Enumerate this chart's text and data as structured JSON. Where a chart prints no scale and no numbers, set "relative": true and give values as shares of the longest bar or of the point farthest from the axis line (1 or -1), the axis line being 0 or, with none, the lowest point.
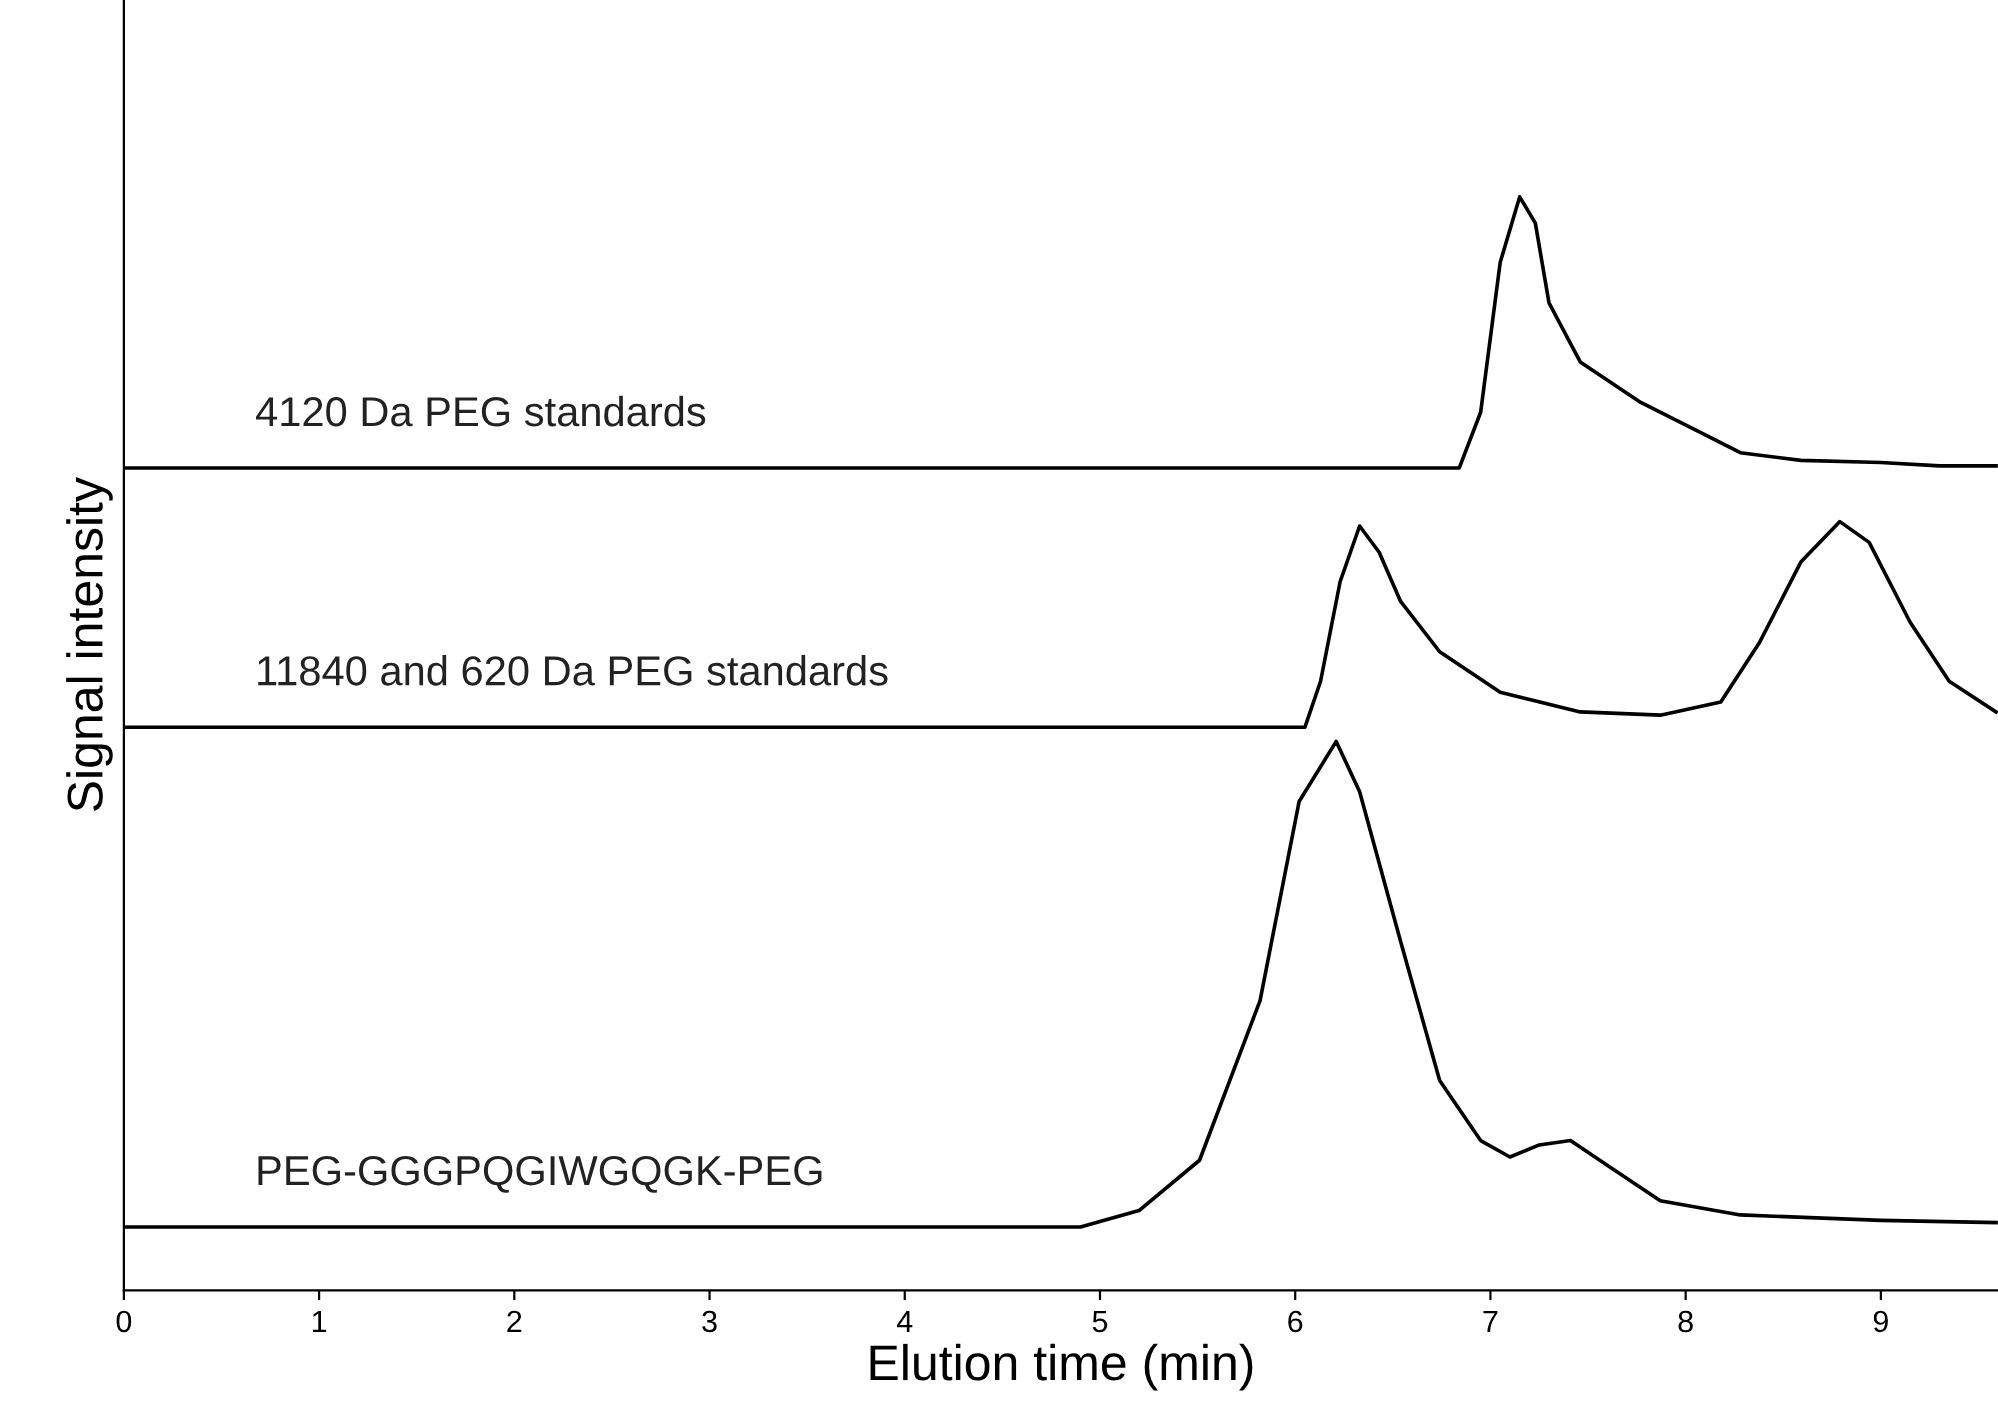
{
  "chart_data": {
    "type": "line",
    "relative": true,
    "xlabel": "Elution time (min)",
    "ylabel": "Signal intensity",
    "xlim": [
      0,
      9.6
    ],
    "xticks": [
      0,
      1,
      2,
      3,
      4,
      5,
      6,
      7,
      8,
      9
    ],
    "grid": false,
    "legend": false,
    "marker": "none",
    "line_style": "solid",
    "series": [
      {
        "color": "#000000",
        "x": [
          0,
          6.84,
          6.95,
          7.05,
          7.15,
          7.23,
          7.3,
          7.46,
          7.77,
          8.07,
          8.28,
          8.59,
          9.0,
          9.3,
          9.59
        ],
        "values": [
          0.752,
          0.752,
          0.803,
          0.94,
          1.0,
          0.976,
          0.903,
          0.849,
          0.812,
          0.785,
          0.766,
          0.759,
          0.757,
          0.754,
          0.754
        ]
      },
      {
        "color": "#000000",
        "x": [
          0,
          6.05,
          6.13,
          6.23,
          6.33,
          6.43,
          6.54,
          6.74,
          7.05,
          7.46,
          7.87,
          8.18,
          8.38,
          8.59,
          8.79,
          8.94,
          9.15,
          9.35,
          9.59
        ],
        "values": [
          0.515,
          0.515,
          0.557,
          0.648,
          0.699,
          0.675,
          0.63,
          0.584,
          0.547,
          0.529,
          0.526,
          0.538,
          0.593,
          0.666,
          0.703,
          0.684,
          0.611,
          0.557,
          0.529
        ]
      },
      {
        "color": "#000000",
        "x": [
          0,
          4.9,
          5.2,
          5.51,
          5.82,
          6.02,
          6.21,
          6.33,
          6.54,
          6.74,
          6.95,
          7.1,
          7.25,
          7.41,
          7.56,
          7.87,
          8.28,
          9.0,
          9.59
        ],
        "values": [
          0.058,
          0.058,
          0.073,
          0.119,
          0.265,
          0.447,
          0.502,
          0.456,
          0.319,
          0.192,
          0.137,
          0.122,
          0.133,
          0.137,
          0.119,
          0.082,
          0.069,
          0.064,
          0.062
        ]
      }
    ],
    "annotations": [
      "4120 Da PEG standards",
      "11840 and 620 Da PEG standards",
      "PEG-GGGPQGIWGQGK-PEG"
    ]
  }
}
